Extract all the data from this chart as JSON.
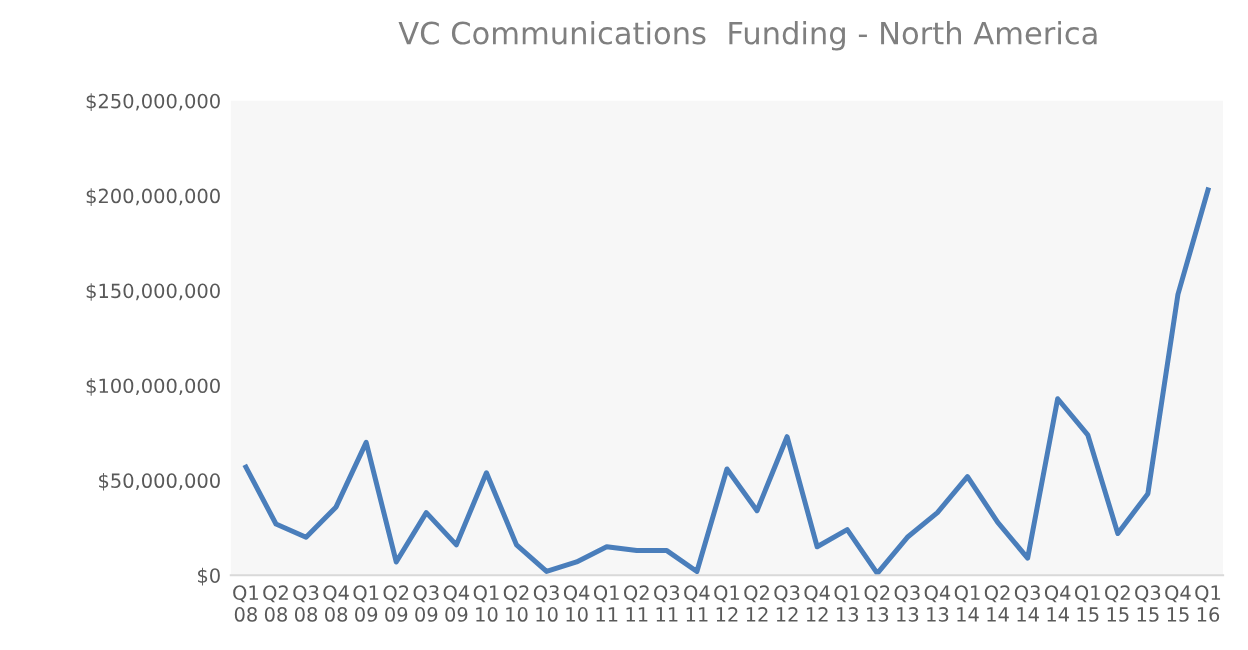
{
  "chart_data": {
    "type": "line",
    "title": "VC Communications  Funding - North America",
    "categories": [
      "Q1\n08",
      "Q2\n08",
      "Q3\n08",
      "Q4\n08",
      "Q1\n09",
      "Q2\n09",
      "Q3\n09",
      "Q4\n09",
      "Q1\n10",
      "Q2\n10",
      "Q3\n10",
      "Q4\n10",
      "Q1\n11",
      "Q2\n11",
      "Q3\n11",
      "Q4\n11",
      "Q1\n12",
      "Q2\n12",
      "Q3\n12",
      "Q4\n12",
      "Q1\n13",
      "Q2\n13",
      "Q3\n13",
      "Q4\n13",
      "Q1\n14",
      "Q2\n14",
      "Q3\n14",
      "Q4\n14",
      "Q1\n15",
      "Q2\n15",
      "Q3\n15",
      "Q4\n15",
      "Q1\n16"
    ],
    "series": [
      {
        "color": "#4a7ebb",
        "values": [
          57000000,
          27000000,
          20000000,
          36000000,
          70000000,
          7000000,
          33000000,
          16000000,
          54000000,
          16000000,
          2000000,
          7000000,
          15000000,
          13000000,
          13000000,
          2000000,
          56000000,
          34000000,
          73000000,
          15000000,
          24000000,
          1000000,
          20000000,
          33000000,
          52000000,
          28000000,
          9000000,
          93000000,
          74000000,
          22000000,
          43000000,
          148000000,
          203000000
        ]
      }
    ],
    "ylim": [
      0,
      250000000
    ],
    "yticks": [
      {
        "value": 0,
        "label": "$0"
      },
      {
        "value": 50000000,
        "label": "$50,000,000"
      },
      {
        "value": 100000000,
        "label": "$100,000,000"
      },
      {
        "value": 150000000,
        "label": "$150,000,000"
      },
      {
        "value": 200000000,
        "label": "$200,000,000"
      },
      {
        "value": 250000000,
        "label": "$250,000,000"
      }
    ],
    "grid": false,
    "legend": false,
    "marker": "none",
    "line_style": "solid"
  }
}
